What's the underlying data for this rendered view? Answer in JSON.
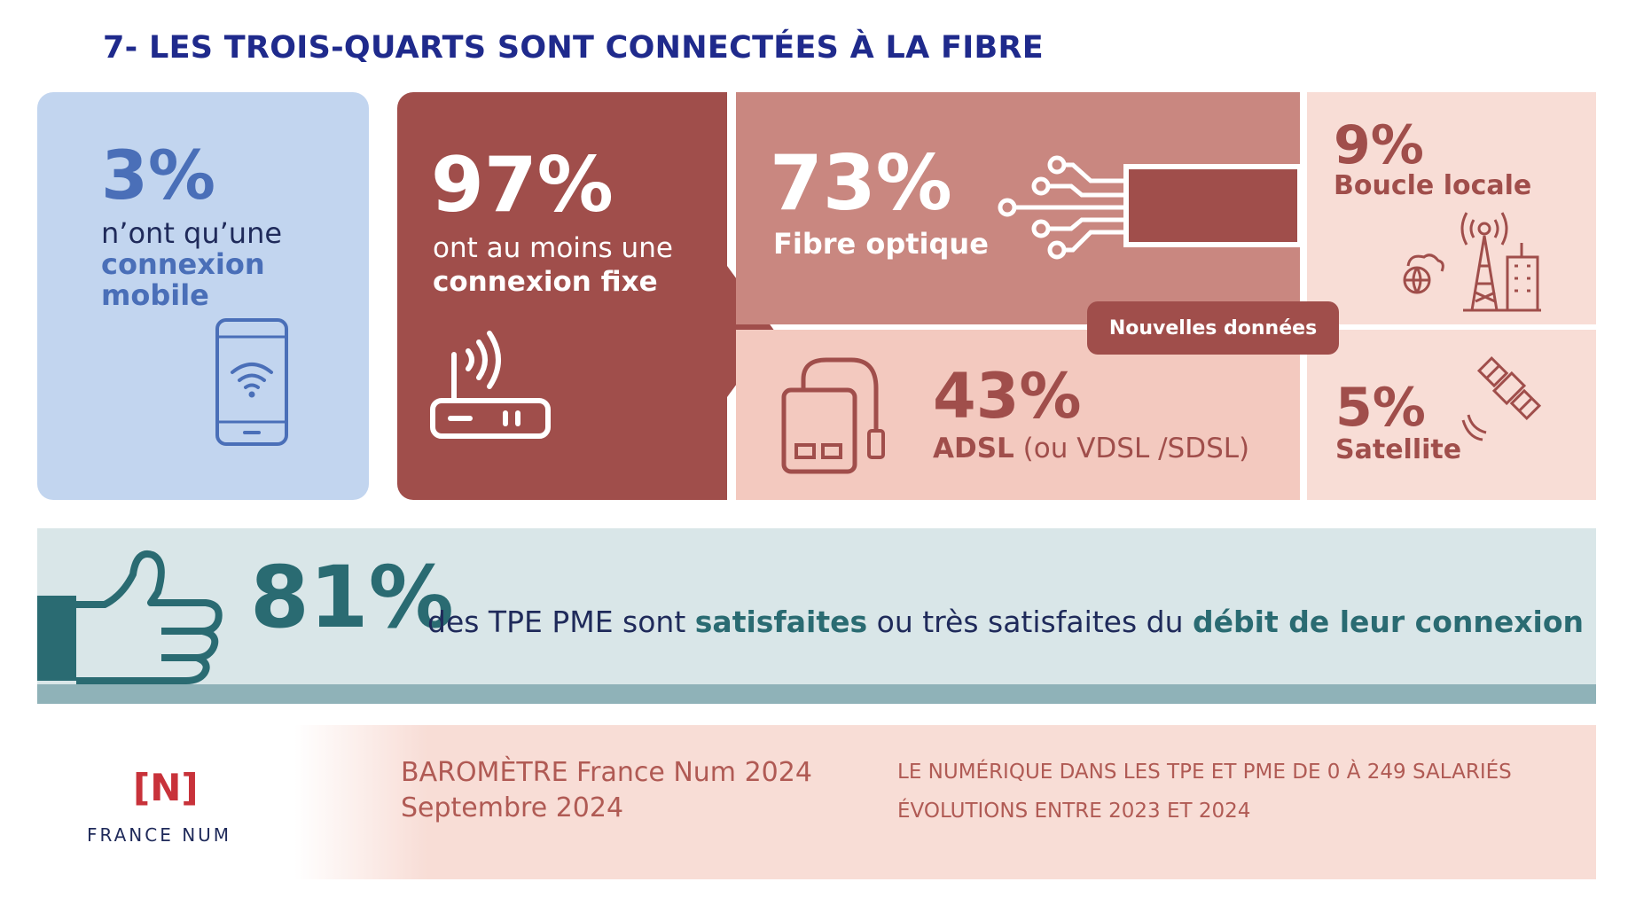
{
  "title": "7- LES TROIS-QUARTS SONT CONNECTÉES À LA FIBRE",
  "mobile": {
    "pct": "3%",
    "line1": "n’ont qu’une",
    "line2": "connexion",
    "line3": "mobile",
    "icon": "smartphone-wifi-icon"
  },
  "fixe": {
    "pct": "97%",
    "line1": "ont au moins une",
    "line2": "connexion fixe",
    "icon": "router-icon"
  },
  "fibre": {
    "pct": "73%",
    "label": "Fibre optique",
    "icon": "fiber-optic-icon"
  },
  "adsl": {
    "pct": "43%",
    "label_bold": "ADSL",
    "label_rest": " (ou VDSL /SDSL)",
    "icon": "modem-icon"
  },
  "boucle": {
    "pct": "9%",
    "label": "Boucle locale",
    "icon": "antenna-tower-icon"
  },
  "satellite": {
    "pct": "5%",
    "label": "Satellite",
    "icon": "satellite-icon"
  },
  "badge": "Nouvelles données",
  "satisfaction": {
    "pct": "81%",
    "t1": "des TPE PME sont ",
    "t2": "satisfaites",
    "t3": " ou très satisfaites du ",
    "t4": "débit de leur connexion",
    "icon": "thumbs-up-icon"
  },
  "footer": {
    "logo": "[N]",
    "logo_name": "FRANCE NUM",
    "baro_line1": "BAROMÈTRE France Num 2024",
    "baro_line2": "Septembre 2024",
    "note_line1": "LE NUMÉRIQUE DANS LES TPE ET PME DE 0 À 249 SALARIÉS",
    "note_line2": "ÉVOLUTIONS ENTRE 2023 ET 2024"
  },
  "colors": {
    "navy": "#1f2a8c",
    "brick": "#a04e4b",
    "rose": "#c98780",
    "pale": "#f8ddd6",
    "blue": "#4a6fb8",
    "teal": "#2a6b72"
  }
}
